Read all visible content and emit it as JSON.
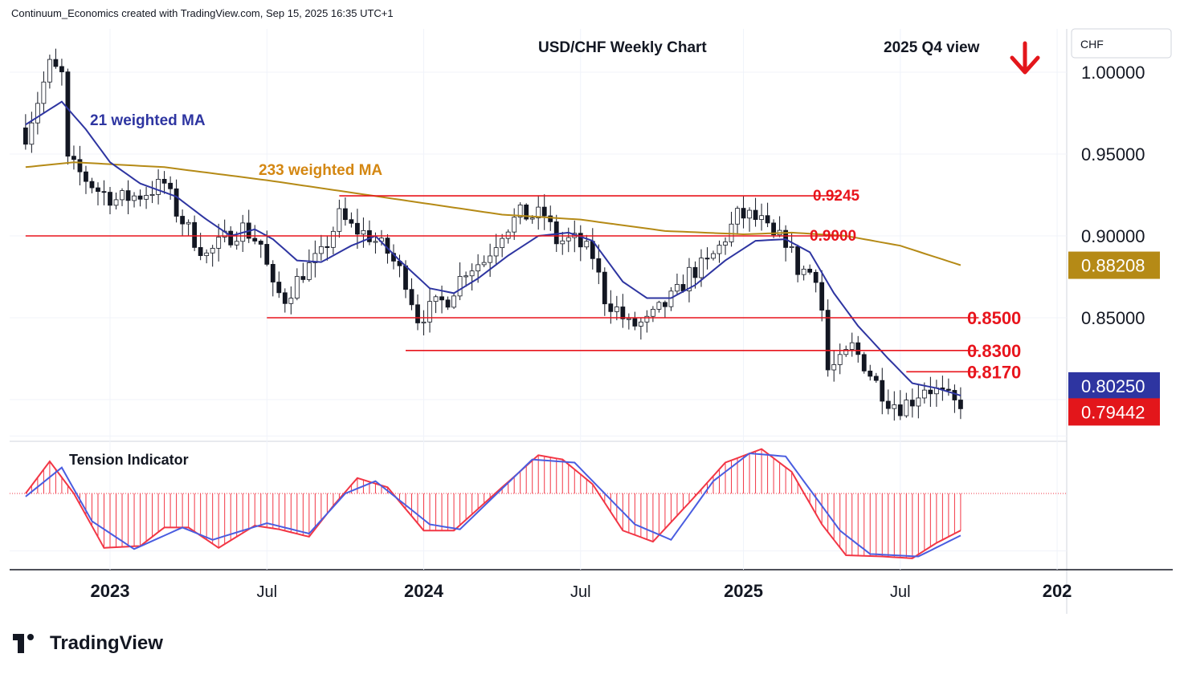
{
  "header": {
    "text": "Continuum_Economics created with TradingView.com, Sep 15, 2025 16:35 UTC+1"
  },
  "brand": {
    "name": "TradingView",
    "icon": "tradingview-logo-icon"
  },
  "chart_data": {
    "type": "candlestick",
    "title": "USD/CHF Weekly Chart",
    "view_label": "2025 Q4 view",
    "view_arrow": "down-arrow-icon",
    "currency": "CHF",
    "ylim": [
      0.775,
      1.025
    ],
    "y_ticks": [
      "1.00000",
      "0.95000",
      "0.90000",
      "0.85000"
    ],
    "x_ticks": [
      "2023",
      "Jul",
      "2024",
      "Jul",
      "2025",
      "Jul",
      "202"
    ],
    "grid": true,
    "colors": {
      "up": "#089981",
      "down": "#f23645",
      "wma21": "#2e35a1",
      "wma233": "#b58a16",
      "level": "#e8141c",
      "tension_fast": "#f23645",
      "tension_slow": "#4a5de0"
    },
    "price_badges": [
      {
        "value": "0.88208",
        "color": "#b58a16"
      },
      {
        "value": "0.80250",
        "color": "#2e35a1"
      },
      {
        "value": "0.79442",
        "color": "#e3161b"
      }
    ],
    "ma_labels": [
      {
        "text": "21 weighted MA",
        "color": "#2e35a1"
      },
      {
        "text": "233 weighted MA",
        "color": "#d48712"
      }
    ],
    "levels": [
      {
        "label": "0.9245",
        "value": 0.9245,
        "from": "2023-09-25",
        "to": "2025-04-28"
      },
      {
        "label": "0.9000",
        "value": 0.9,
        "from": "2022-09-26",
        "to": "2025-04-28"
      },
      {
        "label": "0.8500",
        "value": 0.85,
        "from": "2023-07-03",
        "to": "2025-10-06"
      },
      {
        "label": "0.8300",
        "value": 0.83,
        "from": "2023-12-11",
        "to": "2025-10-06"
      },
      {
        "label": "0.8170",
        "value": 0.817,
        "from": "2025-07-14",
        "to": "2025-10-06"
      }
    ],
    "indicator": {
      "name": "Tension Indicator"
    },
    "anchors": [
      [
        "2022-09-26",
        0.962
      ],
      [
        "2022-10-24",
        1.004
      ],
      [
        "2022-11-07",
        0.998
      ],
      [
        "2022-11-14",
        0.945
      ],
      [
        "2022-12-19",
        0.928
      ],
      [
        "2023-01-09",
        0.922
      ],
      [
        "2023-02-06",
        0.925
      ],
      [
        "2023-03-06",
        0.932
      ],
      [
        "2023-03-20",
        0.915
      ],
      [
        "2023-04-10",
        0.898
      ],
      [
        "2023-04-24",
        0.888
      ],
      [
        "2023-05-15",
        0.898
      ],
      [
        "2023-06-05",
        0.905
      ],
      [
        "2023-06-26",
        0.895
      ],
      [
        "2023-07-10",
        0.867
      ],
      [
        "2023-07-24",
        0.862
      ],
      [
        "2023-08-14",
        0.878
      ],
      [
        "2023-09-04",
        0.888
      ],
      [
        "2023-09-25",
        0.912
      ],
      [
        "2023-10-09",
        0.905
      ],
      [
        "2023-10-30",
        0.9
      ],
      [
        "2023-11-20",
        0.89
      ],
      [
        "2023-12-11",
        0.873
      ],
      [
        "2023-12-25",
        0.85
      ],
      [
        "2024-01-08",
        0.855
      ],
      [
        "2024-01-29",
        0.862
      ],
      [
        "2024-02-19",
        0.88
      ],
      [
        "2024-03-11",
        0.885
      ],
      [
        "2024-04-01",
        0.903
      ],
      [
        "2024-04-22",
        0.913
      ],
      [
        "2024-05-06",
        0.912
      ],
      [
        "2024-05-20",
        0.913
      ],
      [
        "2024-06-03",
        0.897
      ],
      [
        "2024-06-24",
        0.897
      ],
      [
        "2024-07-15",
        0.888
      ],
      [
        "2024-07-29",
        0.862
      ],
      [
        "2024-08-12",
        0.855
      ],
      [
        "2024-08-26",
        0.845
      ],
      [
        "2024-09-16",
        0.847
      ],
      [
        "2024-10-07",
        0.858
      ],
      [
        "2024-10-21",
        0.865
      ],
      [
        "2024-11-04",
        0.877
      ],
      [
        "2024-11-25",
        0.883
      ],
      [
        "2024-12-09",
        0.893
      ],
      [
        "2024-12-30",
        0.912
      ],
      [
        "2025-01-13",
        0.912
      ],
      [
        "2025-01-27",
        0.908
      ],
      [
        "2025-02-10",
        0.898
      ],
      [
        "2025-02-24",
        0.898
      ],
      [
        "2025-03-10",
        0.88
      ],
      [
        "2025-03-31",
        0.877
      ],
      [
        "2025-04-07",
        0.855
      ],
      [
        "2025-04-14",
        0.818
      ],
      [
        "2025-04-28",
        0.822
      ],
      [
        "2025-05-12",
        0.832
      ],
      [
        "2025-05-26",
        0.822
      ],
      [
        "2025-06-09",
        0.81
      ],
      [
        "2025-06-23",
        0.8
      ],
      [
        "2025-07-07",
        0.796
      ],
      [
        "2025-07-21",
        0.8
      ],
      [
        "2025-08-04",
        0.808
      ],
      [
        "2025-08-18",
        0.805
      ],
      [
        "2025-09-01",
        0.8
      ],
      [
        "2025-09-15",
        0.7944
      ]
    ],
    "wma21": [
      [
        "2022-09-26",
        0.968
      ],
      [
        "2022-10-17",
        0.975
      ],
      [
        "2022-11-07",
        0.982
      ],
      [
        "2022-12-05",
        0.965
      ],
      [
        "2023-01-02",
        0.945
      ],
      [
        "2023-02-06",
        0.932
      ],
      [
        "2023-03-20",
        0.924
      ],
      [
        "2023-04-24",
        0.91
      ],
      [
        "2023-05-22",
        0.9
      ],
      [
        "2023-06-19",
        0.904
      ],
      [
        "2023-07-10",
        0.898
      ],
      [
        "2023-08-07",
        0.885
      ],
      [
        "2023-09-04",
        0.884
      ],
      [
        "2023-10-09",
        0.894
      ],
      [
        "2023-11-06",
        0.9
      ],
      [
        "2023-12-04",
        0.885
      ],
      [
        "2024-01-08",
        0.868
      ],
      [
        "2024-02-05",
        0.865
      ],
      [
        "2024-03-04",
        0.874
      ],
      [
        "2024-04-08",
        0.888
      ],
      [
        "2024-05-13",
        0.9
      ],
      [
        "2024-06-17",
        0.902
      ],
      [
        "2024-07-15",
        0.897
      ],
      [
        "2024-08-19",
        0.872
      ],
      [
        "2024-09-16",
        0.862
      ],
      [
        "2024-10-14",
        0.862
      ],
      [
        "2024-11-11",
        0.87
      ],
      [
        "2024-12-16",
        0.885
      ],
      [
        "2025-01-20",
        0.897
      ],
      [
        "2025-02-24",
        0.898
      ],
      [
        "2025-03-24",
        0.89
      ],
      [
        "2025-04-21",
        0.865
      ],
      [
        "2025-05-19",
        0.845
      ],
      [
        "2025-06-23",
        0.825
      ],
      [
        "2025-07-21",
        0.81
      ],
      [
        "2025-08-18",
        0.807
      ],
      [
        "2025-09-15",
        0.8025
      ]
    ],
    "wma233": [
      [
        "2022-09-26",
        0.942
      ],
      [
        "2022-11-21",
        0.945
      ],
      [
        "2023-03-06",
        0.942
      ],
      [
        "2023-07-03",
        0.934
      ],
      [
        "2023-10-02",
        0.927
      ],
      [
        "2024-01-01",
        0.92
      ],
      [
        "2024-04-01",
        0.913
      ],
      [
        "2024-07-01",
        0.91
      ],
      [
        "2024-10-07",
        0.903
      ],
      [
        "2025-01-06",
        0.901
      ],
      [
        "2025-03-03",
        0.902
      ],
      [
        "2025-05-05",
        0.9
      ],
      [
        "2025-07-07",
        0.894
      ],
      [
        "2025-09-15",
        0.8821
      ]
    ],
    "tension_fast": [
      [
        "2022-09-26",
        0.0
      ],
      [
        "2022-10-24",
        0.52
      ],
      [
        "2022-11-21",
        0.0
      ],
      [
        "2022-12-26",
        -0.88
      ],
      [
        "2023-02-06",
        -0.85
      ],
      [
        "2023-03-06",
        -0.55
      ],
      [
        "2023-04-03",
        -0.55
      ],
      [
        "2023-05-08",
        -0.88
      ],
      [
        "2023-06-19",
        -0.52
      ],
      [
        "2023-07-17",
        -0.58
      ],
      [
        "2023-08-21",
        -0.7
      ],
      [
        "2023-09-18",
        -0.2
      ],
      [
        "2023-10-16",
        0.25
      ],
      [
        "2023-11-20",
        0.1
      ],
      [
        "2024-01-01",
        -0.6
      ],
      [
        "2024-02-05",
        -0.6
      ],
      [
        "2024-04-01",
        0.1
      ],
      [
        "2024-05-13",
        0.62
      ],
      [
        "2024-06-10",
        0.55
      ],
      [
        "2024-07-15",
        0.15
      ],
      [
        "2024-08-19",
        -0.6
      ],
      [
        "2024-09-23",
        -0.78
      ],
      [
        "2024-11-04",
        -0.15
      ],
      [
        "2024-12-16",
        0.5
      ],
      [
        "2025-01-27",
        0.72
      ],
      [
        "2025-03-03",
        0.35
      ],
      [
        "2025-04-07",
        -0.5
      ],
      [
        "2025-05-05",
        -1.0
      ],
      [
        "2025-06-16",
        -1.02
      ],
      [
        "2025-07-21",
        -1.05
      ],
      [
        "2025-08-18",
        -0.8
      ],
      [
        "2025-09-15",
        -0.6
      ]
    ],
    "tension_slow": [
      [
        "2022-09-26",
        -0.05
      ],
      [
        "2022-11-07",
        0.42
      ],
      [
        "2022-12-12",
        -0.45
      ],
      [
        "2023-01-30",
        -0.9
      ],
      [
        "2023-03-27",
        -0.55
      ],
      [
        "2023-05-01",
        -0.75
      ],
      [
        "2023-07-03",
        -0.48
      ],
      [
        "2023-08-21",
        -0.65
      ],
      [
        "2023-10-02",
        0.0
      ],
      [
        "2023-11-06",
        0.2
      ],
      [
        "2024-01-08",
        -0.5
      ],
      [
        "2024-02-12",
        -0.58
      ],
      [
        "2024-05-06",
        0.55
      ],
      [
        "2024-06-24",
        0.5
      ],
      [
        "2024-09-02",
        -0.5
      ],
      [
        "2024-10-14",
        -0.75
      ],
      [
        "2024-12-02",
        0.2
      ],
      [
        "2025-01-13",
        0.65
      ],
      [
        "2025-02-24",
        0.6
      ],
      [
        "2025-04-28",
        -0.6
      ],
      [
        "2025-06-02",
        -0.98
      ],
      [
        "2025-07-28",
        -1.02
      ],
      [
        "2025-09-15",
        -0.68
      ]
    ]
  }
}
